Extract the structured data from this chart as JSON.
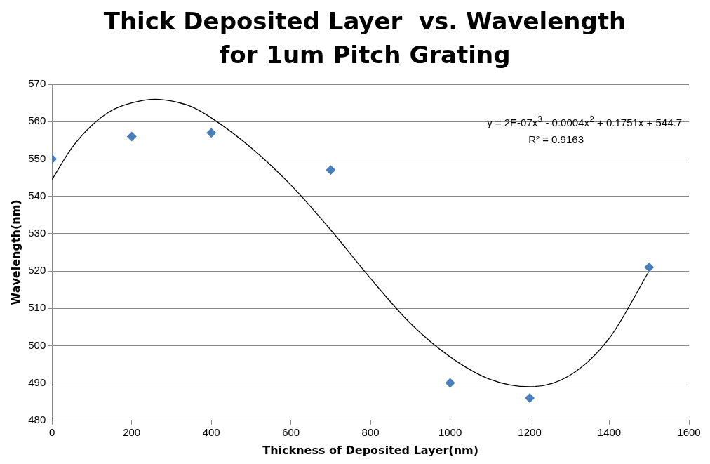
{
  "chart_data": {
    "type": "scatter",
    "title": "Thick Deposited Layer  vs. Wavelength for 1um Pitch Grating",
    "xlabel": "Thickness of Deposited Layer(nm)",
    "ylabel": "Wavelength(nm)",
    "series": [
      {
        "color": "#4a7ebb",
        "marker": "diamond",
        "x": [
          0,
          200,
          400,
          700,
          1000,
          1200,
          1500
        ],
        "values": [
          550,
          556,
          557,
          547,
          490,
          486,
          521
        ]
      },
      {
        "type": "line",
        "color": "#000000",
        "marker": "none",
        "x": [
          0,
          50,
          100,
          150,
          200,
          260,
          300,
          350,
          400,
          500,
          600,
          700,
          800,
          900,
          1000,
          1100,
          1200,
          1300,
          1400,
          1500
        ],
        "values": [
          544.5,
          553,
          559,
          563,
          565,
          566,
          565.5,
          564,
          561,
          553,
          543,
          531,
          518,
          506,
          497,
          491,
          489,
          492,
          502,
          520
        ]
      }
    ],
    "xlim": [
      0,
      1600
    ],
    "xticks": [
      0,
      200,
      400,
      600,
      800,
      1000,
      1200,
      1400,
      1600
    ],
    "ylim": [
      480,
      570
    ],
    "yticks": [
      480,
      490,
      500,
      510,
      520,
      530,
      540,
      550,
      560,
      570
    ],
    "grid": "y",
    "legend": false,
    "annotations": [
      "y = 2E-07x$^{3}$ - 0.0004x$^{2}$ + 0.1751x + 544.7",
      "R² = 0.9163"
    ]
  }
}
